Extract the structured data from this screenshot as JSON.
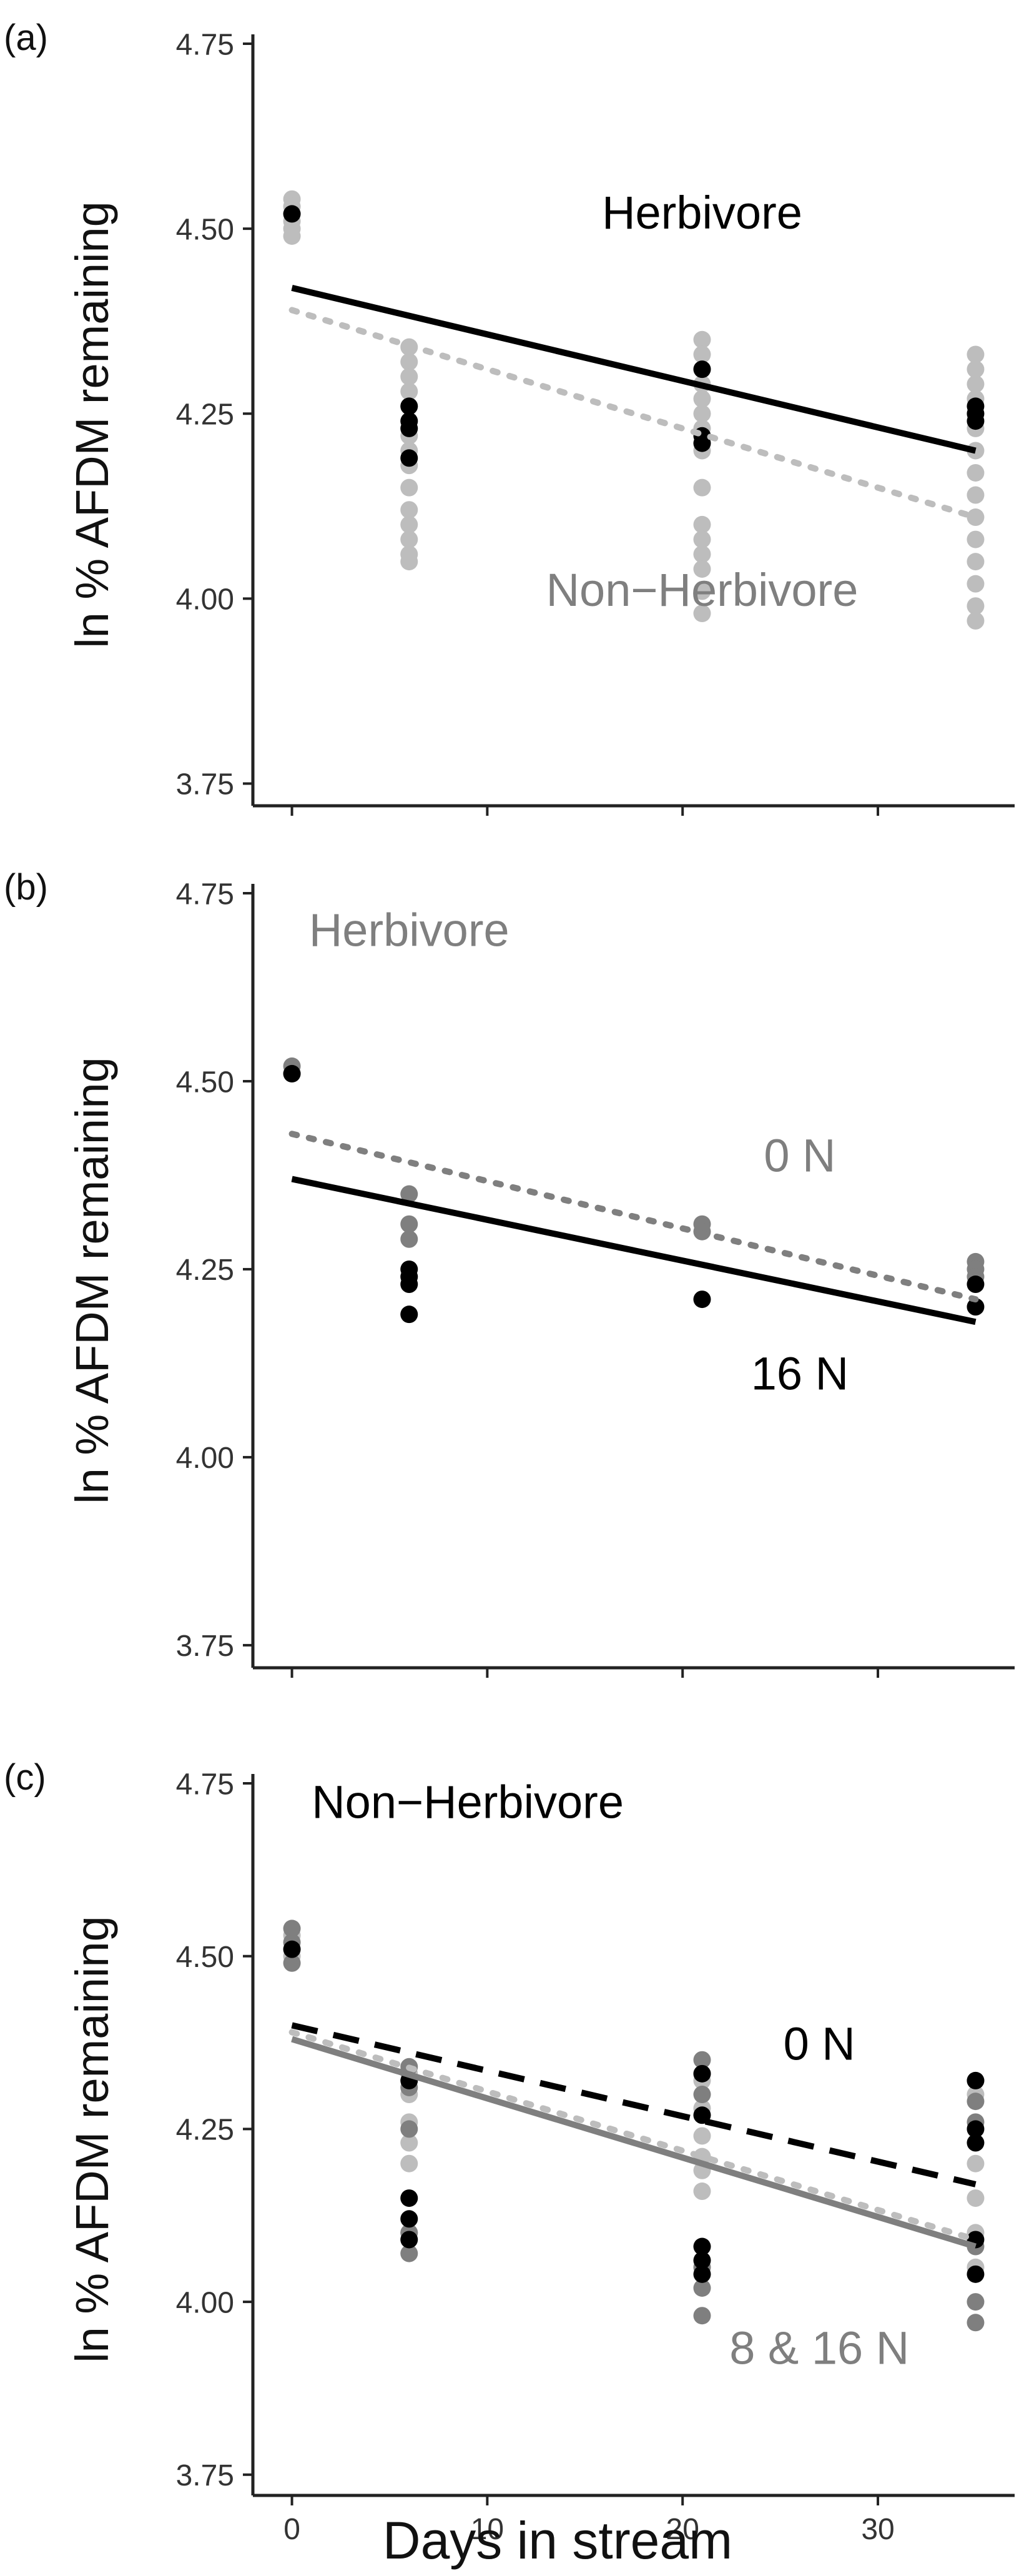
{
  "figure": {
    "xlabel": "Days in stream",
    "xticks": [
      0,
      10,
      20,
      30
    ]
  },
  "colors": {
    "black": "#000000",
    "dark_gray": "#7f7f7f",
    "light_gray": "#bdbdbd",
    "axis": "#222222"
  },
  "chart_data": [
    {
      "type": "scatter",
      "panel_label": "(a)",
      "ylabel": "ln % AFDM remaining",
      "yticks": [
        "3.75",
        "4.00",
        "4.25",
        "4.50",
        "4.75"
      ],
      "xlim": [
        -2,
        37
      ],
      "ylim": [
        3.72,
        4.75
      ],
      "annotations": [
        {
          "text": "Herbivore",
          "color": "#000000",
          "at": [
            21,
            4.5
          ]
        },
        {
          "text": "Non−Herbivore",
          "color": "#7f7f7f",
          "at": [
            21,
            3.99
          ]
        }
      ],
      "series": [
        {
          "name": "Non-Herbivore",
          "color": "#bdbdbd",
          "x": [
            0,
            0,
            0,
            0,
            0,
            0,
            6,
            6,
            6,
            6,
            6,
            6,
            6,
            6,
            6,
            6,
            6,
            6,
            6,
            6,
            6,
            21,
            21,
            21,
            21,
            21,
            21,
            21,
            21,
            21,
            21,
            21,
            21,
            21,
            21,
            21,
            35,
            35,
            35,
            35,
            35,
            35,
            35,
            35,
            35,
            35,
            35,
            35,
            35,
            35,
            35
          ],
          "y": [
            4.54,
            4.53,
            4.52,
            4.51,
            4.5,
            4.49,
            4.34,
            4.32,
            4.3,
            4.28,
            4.26,
            4.24,
            4.22,
            4.2,
            4.18,
            4.15,
            4.12,
            4.1,
            4.08,
            4.06,
            4.05,
            4.35,
            4.33,
            4.31,
            4.29,
            4.27,
            4.25,
            4.23,
            4.2,
            4.15,
            4.1,
            4.06,
            4.04,
            4.01,
            3.98,
            4.08,
            4.33,
            4.31,
            4.29,
            4.27,
            4.25,
            4.23,
            4.2,
            4.17,
            4.14,
            4.11,
            4.08,
            4.05,
            4.02,
            3.99,
            3.97
          ]
        },
        {
          "name": "Herbivore",
          "color": "#000000",
          "x": [
            0,
            6,
            6,
            6,
            6,
            21,
            21,
            21,
            35,
            35,
            35
          ],
          "y": [
            4.52,
            4.24,
            4.23,
            4.19,
            4.26,
            4.31,
            4.22,
            4.21,
            4.26,
            4.25,
            4.24
          ]
        }
      ],
      "fits": [
        {
          "name": "Herbivore",
          "style": "solid",
          "color": "#000000",
          "x": [
            0,
            35
          ],
          "y": [
            4.42,
            4.2
          ]
        },
        {
          "name": "Non-Herbivore",
          "style": "dotted",
          "color": "#bdbdbd",
          "x": [
            0,
            35
          ],
          "y": [
            4.39,
            4.11
          ]
        }
      ]
    },
    {
      "type": "scatter",
      "panel_label": "(b)",
      "ylabel": "ln % AFDM remaining",
      "yticks": [
        "3.75",
        "4.00",
        "4.25",
        "4.50",
        "4.75"
      ],
      "xlim": [
        -2,
        37
      ],
      "ylim": [
        3.72,
        4.75
      ],
      "annotations": [
        {
          "text": "Herbivore",
          "color": "#7f7f7f",
          "at": [
            6,
            4.68
          ]
        },
        {
          "text": "0 N",
          "color": "#7f7f7f",
          "at": [
            26,
            4.38
          ]
        },
        {
          "text": "16 N",
          "color": "#000000",
          "at": [
            26,
            4.09
          ]
        }
      ],
      "series": [
        {
          "name": "0 N",
          "color": "#7f7f7f",
          "x": [
            0,
            0,
            6,
            6,
            6,
            21,
            21,
            35,
            35,
            35
          ],
          "y": [
            4.52,
            4.51,
            4.35,
            4.31,
            4.29,
            4.31,
            4.3,
            4.26,
            4.25,
            4.24
          ]
        },
        {
          "name": "16 N",
          "color": "#000000",
          "x": [
            0,
            6,
            6,
            6,
            6,
            21,
            35,
            35
          ],
          "y": [
            4.51,
            4.25,
            4.24,
            4.23,
            4.19,
            4.21,
            4.23,
            4.2
          ]
        }
      ],
      "fits": [
        {
          "name": "0 N",
          "style": "dotted",
          "color": "#7f7f7f",
          "x": [
            0,
            35
          ],
          "y": [
            4.43,
            4.21
          ]
        },
        {
          "name": "16 N",
          "style": "solid",
          "color": "#000000",
          "x": [
            0,
            35
          ],
          "y": [
            4.37,
            4.18
          ]
        }
      ]
    },
    {
      "type": "scatter",
      "panel_label": "(c)",
      "ylabel": "ln % AFDM remaining",
      "yticks": [
        "3.75",
        "4.00",
        "4.25",
        "4.50",
        "4.75"
      ],
      "xlim": [
        -2,
        37
      ],
      "ylim": [
        3.72,
        4.75
      ],
      "annotations": [
        {
          "text": "Non−Herbivore",
          "color": "#000000",
          "at": [
            9,
            4.7
          ]
        },
        {
          "text": "0 N",
          "color": "#000000",
          "at": [
            27,
            4.35
          ]
        },
        {
          "text": "8 & 16 N",
          "color": "#7f7f7f",
          "at": [
            27,
            3.91
          ]
        }
      ],
      "series": [
        {
          "name": "8 N",
          "color": "#bdbdbd",
          "x": [
            0,
            0,
            6,
            6,
            6,
            6,
            6,
            6,
            21,
            21,
            21,
            21,
            21,
            21,
            35,
            35,
            35,
            35,
            35,
            35
          ],
          "y": [
            4.53,
            4.5,
            4.33,
            4.3,
            4.26,
            4.23,
            4.2,
            4.1,
            4.32,
            4.28,
            4.24,
            4.21,
            4.19,
            4.16,
            4.3,
            4.25,
            4.2,
            4.15,
            4.1,
            4.05
          ]
        },
        {
          "name": "16 N",
          "color": "#7f7f7f",
          "x": [
            0,
            0,
            0,
            6,
            6,
            6,
            6,
            6,
            21,
            21,
            21,
            21,
            21,
            21,
            35,
            35,
            35,
            35,
            35,
            35
          ],
          "y": [
            4.54,
            4.52,
            4.49,
            4.34,
            4.31,
            4.25,
            4.1,
            4.07,
            4.35,
            4.33,
            4.3,
            4.05,
            4.02,
            3.98,
            4.32,
            4.29,
            4.26,
            4.08,
            4.0,
            3.97
          ]
        },
        {
          "name": "0 N",
          "color": "#000000",
          "x": [
            0,
            6,
            6,
            6,
            6,
            21,
            21,
            21,
            21,
            21,
            35,
            35,
            35,
            35,
            35
          ],
          "y": [
            4.51,
            4.32,
            4.15,
            4.12,
            4.09,
            4.33,
            4.27,
            4.08,
            4.06,
            4.04,
            4.32,
            4.25,
            4.23,
            4.09,
            4.04
          ]
        }
      ],
      "fits": [
        {
          "name": "0 N",
          "style": "dashed",
          "color": "#000000",
          "x": [
            0,
            35
          ],
          "y": [
            4.4,
            4.17
          ]
        },
        {
          "name": "8 N",
          "style": "dotted",
          "color": "#bdbdbd",
          "x": [
            0,
            35
          ],
          "y": [
            4.39,
            4.09
          ]
        },
        {
          "name": "16 N",
          "style": "solid",
          "color": "#7f7f7f",
          "x": [
            0,
            35
          ],
          "y": [
            4.38,
            4.08
          ]
        }
      ]
    }
  ]
}
